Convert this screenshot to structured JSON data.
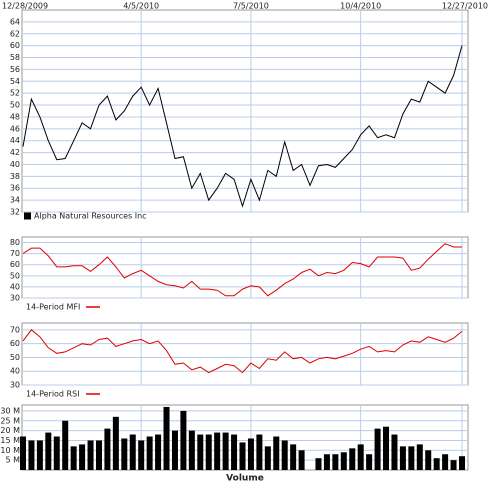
{
  "chart_data": [
    {
      "type": "line",
      "categories": [
        "12/28/2009",
        null,
        null,
        null,
        null,
        null,
        null,
        null,
        null,
        null,
        null,
        null,
        null,
        null,
        "4/5/2010",
        null,
        null,
        null,
        null,
        null,
        null,
        null,
        null,
        null,
        null,
        null,
        null,
        "7/5/2010",
        null,
        null,
        null,
        null,
        null,
        null,
        null,
        null,
        null,
        null,
        null,
        null,
        "10/4/2010",
        null,
        null,
        null,
        null,
        null,
        null,
        null,
        null,
        null,
        null,
        null,
        "12/27/2010"
      ],
      "series": [
        {
          "name": "Alpha Natural Resources Inc",
          "color": "#000000",
          "values": [
            43,
            51,
            48,
            44,
            40.8,
            41,
            44,
            47,
            46,
            50,
            51.5,
            47.5,
            49,
            51.5,
            53,
            50,
            52.8,
            47,
            41,
            41.3,
            36,
            38.5,
            34,
            36,
            38.5,
            37.5,
            33,
            37.5,
            34,
            39,
            38,
            43.8,
            39,
            40,
            36.5,
            39.8,
            40,
            39.5,
            41,
            42.5,
            45,
            46.5,
            44.5,
            45,
            44.5,
            48.5,
            51,
            50.5,
            54,
            53,
            52,
            55,
            60
          ]
        }
      ],
      "ylim": [
        32,
        66
      ],
      "yticks": [
        32,
        34,
        36,
        38,
        40,
        42,
        44,
        46,
        48,
        50,
        52,
        54,
        56,
        58,
        60,
        62,
        64
      ],
      "grid": true
    },
    {
      "type": "line",
      "series": [
        {
          "name": "14-Period MFI",
          "color": "#e00000",
          "values": [
            70,
            75,
            75,
            68,
            58,
            58,
            59,
            59,
            54,
            60,
            67,
            58,
            48,
            52,
            55,
            50,
            45,
            42,
            41,
            39,
            45,
            38,
            38,
            37,
            32,
            32,
            38,
            41,
            40,
            32,
            37,
            43,
            47,
            53,
            56,
            50,
            53,
            52,
            55,
            62,
            61,
            58,
            67,
            67,
            67,
            66,
            55,
            57,
            65,
            72,
            79,
            76,
            76
          ]
        }
      ],
      "ylim": [
        30,
        85
      ],
      "yticks": [
        30,
        40,
        50,
        60,
        70,
        80
      ],
      "grid": true
    },
    {
      "type": "line",
      "series": [
        {
          "name": "14-Period RSI",
          "color": "#e00000",
          "values": [
            62,
            70,
            65,
            57,
            53,
            54,
            57,
            60,
            59,
            63,
            64,
            58,
            60,
            62,
            63,
            60,
            62,
            55,
            45,
            46,
            41,
            43,
            39,
            42,
            45,
            44,
            39,
            46,
            42,
            49,
            48,
            54,
            49,
            50,
            46,
            49,
            50,
            49,
            51,
            53,
            56,
            58,
            54,
            55,
            54,
            59,
            62,
            61,
            65,
            63,
            61,
            64,
            69
          ]
        }
      ],
      "ylim": [
        30,
        75
      ],
      "yticks": [
        30,
        40,
        50,
        60,
        70
      ],
      "grid": true
    },
    {
      "type": "bar",
      "xlabel": "Volume",
      "series": [
        {
          "color": "#000000",
          "values": [
            17,
            15,
            15,
            19,
            17,
            25,
            12,
            13,
            15,
            15,
            21,
            27,
            16,
            18,
            15,
            17,
            18,
            32,
            20,
            30,
            20,
            18,
            18,
            19,
            19,
            18,
            14,
            16,
            18,
            12,
            17,
            15,
            13,
            10,
            null,
            6,
            8,
            8,
            9,
            11,
            13,
            8,
            21,
            22,
            18,
            12,
            12,
            13,
            10,
            6,
            8,
            5,
            7
          ]
        }
      ],
      "ylim": [
        0,
        33
      ],
      "yticks": [
        {
          "value": 5,
          "label": "5 M"
        },
        {
          "value": 10,
          "label": "10 M"
        },
        {
          "value": 15,
          "label": "15 M"
        },
        {
          "value": 20,
          "label": "20 M"
        },
        {
          "value": 25,
          "label": "25 M"
        },
        {
          "value": 30,
          "label": "30 M"
        }
      ],
      "grid": true
    }
  ]
}
